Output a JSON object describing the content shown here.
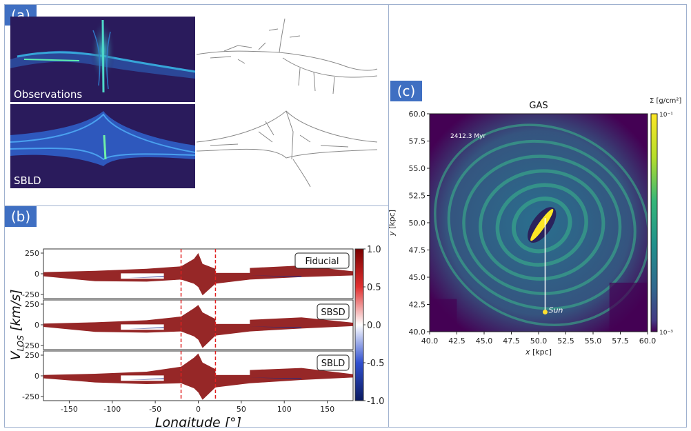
{
  "panel_a": {
    "label": "(a)",
    "top_caption": "Observations",
    "bottom_caption": "SBLD"
  },
  "panel_b": {
    "label": "(b)",
    "ylabel": "V_LOS [km/s]",
    "ylabel_main": "V",
    "ylabel_sub": "LOS",
    "ylabel_unit": " [km/s]",
    "xlabel": "Longitude [°]",
    "colorbar_ticks": [
      "1.0",
      "0.5",
      "0.0",
      "-0.5",
      "-1.0"
    ],
    "chart_data": {
      "type": "area",
      "xlim": [
        -180,
        180
      ],
      "ylim": [
        -300,
        300
      ],
      "x_ticks": [
        "-150",
        "-100",
        "-50",
        "0",
        "50",
        "100",
        "150"
      ],
      "y_ticks": [
        "250",
        "0",
        "-250"
      ],
      "vlines": [
        -20,
        20
      ],
      "colorbar_range": [
        -1.0,
        1.0
      ],
      "series": [
        {
          "name": "Fiducial",
          "x": [
            -180,
            -120,
            -60,
            -20,
            -5,
            0,
            5,
            20,
            60,
            120,
            180
          ],
          "upper": [
            20,
            35,
            60,
            90,
            180,
            250,
            120,
            60,
            70,
            100,
            30
          ],
          "lower": [
            -30,
            -90,
            -95,
            -70,
            -120,
            -160,
            -260,
            -120,
            -70,
            -40,
            -20
          ]
        },
        {
          "name": "SBSD",
          "x": [
            -180,
            -120,
            -60,
            -20,
            -5,
            0,
            5,
            20,
            60,
            120,
            180
          ],
          "upper": [
            15,
            30,
            55,
            100,
            200,
            240,
            150,
            70,
            60,
            90,
            25
          ],
          "lower": [
            -25,
            -85,
            -95,
            -80,
            -140,
            -180,
            -280,
            -130,
            -80,
            -45,
            -15
          ]
        },
        {
          "name": "SBLD",
          "x": [
            -180,
            -120,
            -60,
            -20,
            -5,
            0,
            5,
            20,
            60,
            120,
            180
          ],
          "upper": [
            10,
            25,
            50,
            110,
            220,
            270,
            160,
            80,
            70,
            95,
            20
          ],
          "lower": [
            -30,
            -80,
            -100,
            -90,
            -150,
            -200,
            -290,
            -140,
            -90,
            -50,
            -20
          ]
        }
      ]
    }
  },
  "panel_c": {
    "label": "(c)",
    "title": "GAS",
    "time_label": "2412.3 Myr",
    "sun_label": "Sun",
    "xlabel_main": "x",
    "xlabel_unit": " [kpc]",
    "ylabel_main": "y",
    "ylabel_unit": " [kpc]",
    "colorbar_label": "Σ [g/cm²]",
    "colorbar_top": "10⁻¹",
    "colorbar_bottom": "10⁻³",
    "chart_data": {
      "type": "heatmap",
      "xlim": [
        40,
        60
      ],
      "ylim": [
        40,
        60
      ],
      "x_ticks": [
        "40.0",
        "42.5",
        "45.0",
        "47.5",
        "50.0",
        "52.5",
        "55.0",
        "57.5",
        "60.0"
      ],
      "y_ticks": [
        "60.0",
        "57.5",
        "55.0",
        "52.5",
        "50.0",
        "47.5",
        "45.0",
        "42.5",
        "40.0"
      ],
      "sun_position": [
        50.6,
        41.8
      ],
      "center": [
        50.3,
        49.8
      ],
      "colors": {
        "low": "#440154",
        "mid": "#21918c",
        "high": "#fde725",
        "spiral": "#3bb88a"
      }
    }
  }
}
